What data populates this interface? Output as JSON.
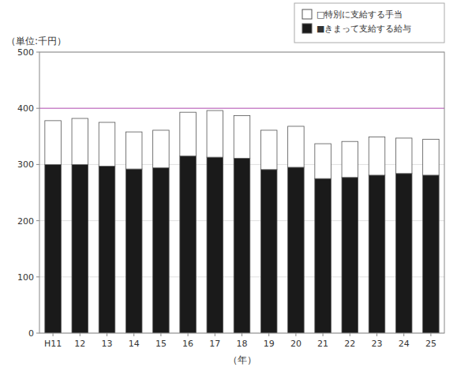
{
  "chart_data": {
    "type": "bar",
    "stacked": true,
    "categories": [
      "H11",
      "12",
      "13",
      "14",
      "15",
      "16",
      "17",
      "18",
      "19",
      "20",
      "21",
      "22",
      "23",
      "24",
      "25"
    ],
    "series": [
      {
        "name": "■きまって支給する給与",
        "color": "#1a1a1a",
        "values": [
          300,
          300,
          297,
          292,
          294,
          315,
          313,
          311,
          291,
          295,
          275,
          277,
          281,
          284,
          281
        ]
      },
      {
        "name": "□特別に支給する手当",
        "color": "#ffffff",
        "values": [
          78,
          82,
          78,
          66,
          67,
          78,
          83,
          76,
          70,
          73,
          62,
          64,
          68,
          63,
          64
        ]
      }
    ],
    "xlabel": "（年）",
    "ylabel": "（単位:千円）",
    "ylim": [
      0,
      500
    ],
    "yticks": [
      0,
      100,
      200,
      300,
      400,
      500
    ],
    "reference_line": {
      "value": 400,
      "color": "#cc88cc"
    },
    "grid": true,
    "legend": "upper right"
  }
}
